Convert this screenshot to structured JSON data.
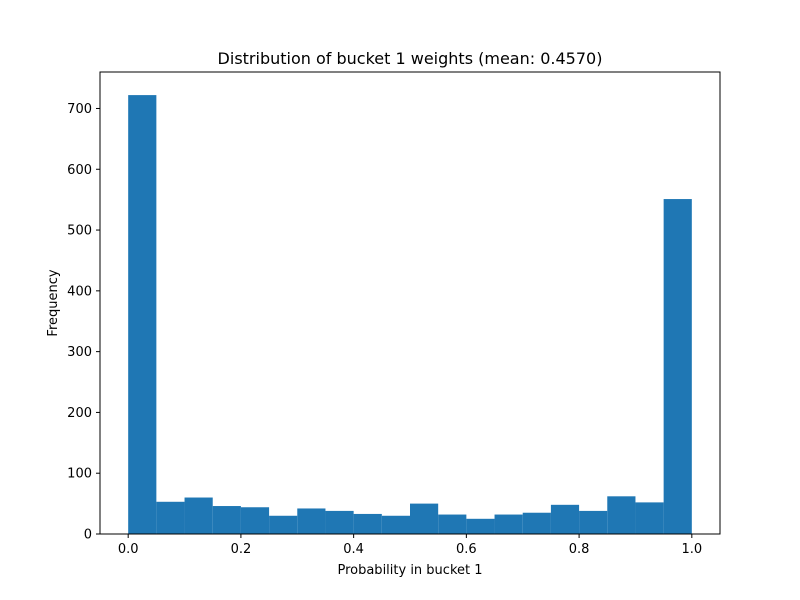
{
  "chart_data": {
    "type": "bar",
    "title": "Distribution of bucket 1 weights (mean: 0.4570)",
    "xlabel": "Probability in bucket 1",
    "ylabel": "Frequency",
    "xlim": [
      -0.05,
      1.05
    ],
    "ylim": [
      0,
      760
    ],
    "x_ticks": [
      0.0,
      0.2,
      0.4,
      0.6,
      0.8,
      1.0
    ],
    "x_tick_labels": [
      "0.0",
      "0.2",
      "0.4",
      "0.6",
      "0.8",
      "1.0"
    ],
    "y_ticks": [
      0,
      100,
      200,
      300,
      400,
      500,
      600,
      700
    ],
    "y_tick_labels": [
      "0",
      "100",
      "200",
      "300",
      "400",
      "500",
      "600",
      "700"
    ],
    "bin_edges": [
      0.0,
      0.05,
      0.1,
      0.15,
      0.2,
      0.25,
      0.3,
      0.35,
      0.4,
      0.45,
      0.5,
      0.55,
      0.6,
      0.65,
      0.7,
      0.75,
      0.8,
      0.85,
      0.9,
      0.95,
      1.0
    ],
    "values": [
      722,
      53,
      60,
      46,
      44,
      30,
      42,
      38,
      33,
      30,
      50,
      32,
      25,
      32,
      35,
      48,
      38,
      62,
      52,
      551
    ],
    "bar_color": "#1f77b4",
    "grid": false,
    "legend": "none"
  }
}
